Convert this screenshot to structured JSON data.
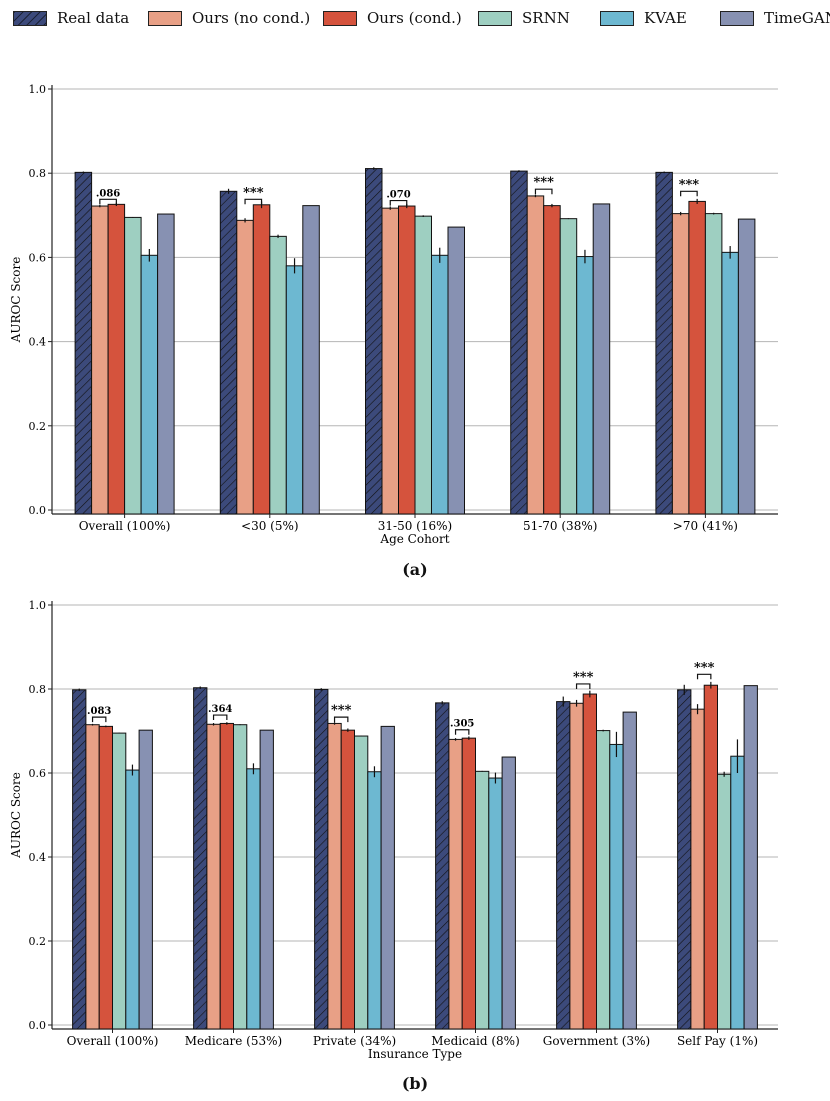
{
  "legend": [
    {
      "label": "Real data",
      "color": "#3c4a7b",
      "hatch": true
    },
    {
      "label": "Ours (no cond.)",
      "color": "#e8a086",
      "hatch": false
    },
    {
      "label": "Ours (cond.)",
      "color": "#d5533d",
      "hatch": false
    },
    {
      "label": "SRNN",
      "color": "#9ecfc1",
      "hatch": false
    },
    {
      "label": "KVAE",
      "color": "#6db8d1",
      "hatch": false
    },
    {
      "label": "TimeGAN",
      "color": "#8791b2",
      "hatch": false
    }
  ],
  "captions": {
    "a": "(a)",
    "b": "(b)"
  },
  "chart_data": [
    {
      "type": "bar",
      "title": "",
      "xlabel": "Age Cohort",
      "ylabel": "AUROC Score",
      "ylim": [
        0,
        1
      ],
      "yticks": [
        "0.0",
        "0.2",
        "0.4",
        "0.6",
        "0.8",
        "1.0"
      ],
      "grid": true,
      "categories": [
        "Overall (100%)",
        "<30 (5%)",
        "31-50 (16%)",
        "51-70 (38%)",
        ">70 (41%)"
      ],
      "series": [
        {
          "name": "Real data",
          "values": [
            0.802,
            0.757,
            0.811,
            0.805,
            0.802
          ],
          "errors": [
            0.002,
            0.006,
            0.003,
            0.002,
            0.002
          ]
        },
        {
          "name": "Ours (no cond.)",
          "values": [
            0.722,
            0.688,
            0.717,
            0.746,
            0.704
          ],
          "errors": [
            0.003,
            0.005,
            0.004,
            0.003,
            0.004
          ]
        },
        {
          "name": "Ours (cond.)",
          "values": [
            0.726,
            0.725,
            0.722,
            0.723,
            0.733
          ],
          "errors": [
            0.004,
            0.008,
            0.005,
            0.004,
            0.006
          ]
        },
        {
          "name": "SRNN",
          "values": [
            0.695,
            0.65,
            0.698,
            0.692,
            0.704
          ],
          "errors": [
            0.001,
            0.004,
            0.002,
            0.001,
            0.002
          ]
        },
        {
          "name": "KVAE",
          "values": [
            0.605,
            0.58,
            0.605,
            0.602,
            0.612
          ],
          "errors": [
            0.015,
            0.018,
            0.018,
            0.016,
            0.015
          ]
        },
        {
          "name": "TimeGAN",
          "values": [
            0.703,
            0.723,
            0.672,
            0.727,
            0.691
          ],
          "errors": [
            0,
            0,
            0,
            0,
            0
          ]
        }
      ],
      "annotations": [
        {
          "category_index": 0,
          "label": ".086",
          "y": 0.738
        },
        {
          "category_index": 1,
          "label": "***",
          "y": 0.738
        },
        {
          "category_index": 2,
          "label": ".070",
          "y": 0.735
        },
        {
          "category_index": 3,
          "label": "***",
          "y": 0.762
        },
        {
          "category_index": 4,
          "label": "***",
          "y": 0.757
        }
      ]
    },
    {
      "type": "bar",
      "title": "",
      "xlabel": "Insurance Type",
      "ylabel": "AUROC Score",
      "ylim": [
        0,
        1
      ],
      "yticks": [
        "0.0",
        "0.2",
        "0.4",
        "0.6",
        "0.8",
        "1.0"
      ],
      "grid": true,
      "categories": [
        "Overall (100%)",
        "Medicare (53%)",
        "Private (34%)",
        "Medicaid (8%)",
        "Government (3%)",
        "Self Pay (1%)"
      ],
      "series": [
        {
          "name": "Real data",
          "values": [
            0.798,
            0.803,
            0.799,
            0.767,
            0.77,
            0.798
          ],
          "errors": [
            0.003,
            0.003,
            0.003,
            0.004,
            0.012,
            0.012
          ]
        },
        {
          "name": "Ours (no cond.)",
          "values": [
            0.715,
            0.716,
            0.718,
            0.68,
            0.766,
            0.752
          ],
          "errors": [
            0.002,
            0.003,
            0.003,
            0.003,
            0.008,
            0.012
          ]
        },
        {
          "name": "Ours (cond.)",
          "values": [
            0.711,
            0.718,
            0.702,
            0.683,
            0.788,
            0.809
          ],
          "errors": [
            0.002,
            0.003,
            0.004,
            0.004,
            0.008,
            0.008
          ]
        },
        {
          "name": "SRNN",
          "values": [
            0.695,
            0.715,
            0.688,
            0.604,
            0.701,
            0.597
          ],
          "errors": [
            0.001,
            0.001,
            0.001,
            0.001,
            0.002,
            0.006
          ]
        },
        {
          "name": "KVAE",
          "values": [
            0.607,
            0.61,
            0.603,
            0.588,
            0.668,
            0.64
          ],
          "errors": [
            0.013,
            0.013,
            0.013,
            0.013,
            0.03,
            0.04
          ]
        },
        {
          "name": "TimeGAN",
          "values": [
            0.702,
            0.702,
            0.711,
            0.638,
            0.745,
            0.808
          ],
          "errors": [
            0,
            0,
            0,
            0,
            0,
            0
          ]
        }
      ],
      "annotations": [
        {
          "category_index": 0,
          "label": ".083",
          "y": 0.733
        },
        {
          "category_index": 1,
          "label": ".364",
          "y": 0.738
        },
        {
          "category_index": 2,
          "label": "***",
          "y": 0.733
        },
        {
          "category_index": 3,
          "label": ".305",
          "y": 0.703
        },
        {
          "category_index": 4,
          "label": "***",
          "y": 0.812
        },
        {
          "category_index": 5,
          "label": "***",
          "y": 0.835
        }
      ]
    }
  ]
}
